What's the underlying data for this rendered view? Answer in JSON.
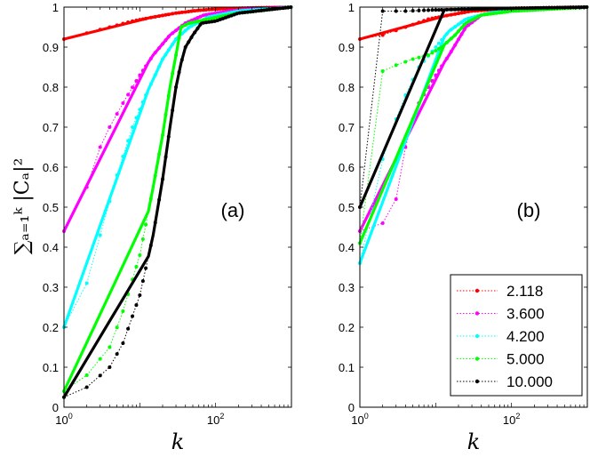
{
  "chart_data": {
    "type": "line",
    "xscale": "log",
    "xlim": [
      1,
      1000
    ],
    "ylim": [
      0,
      1
    ],
    "ylabel": "∑ₐ₌₁ᵏ |Cₐ|²",
    "xlabel": "k",
    "yticks": [
      "0",
      "0.1",
      "0.2",
      "0.3",
      "0.4",
      "0.5",
      "0.6",
      "0.7",
      "0.8",
      "0.9",
      "1"
    ],
    "xticks": [
      {
        "value": 1,
        "base": "10",
        "exp": "0"
      },
      {
        "value": 100,
        "base": "10",
        "exp": "2"
      }
    ],
    "legend": {
      "placement": "bottom-right",
      "entries": [
        {
          "label": "2.118",
          "color": "#ff0000"
        },
        {
          "label": "3.600",
          "color": "#ff00ff"
        },
        {
          "label": "4.200",
          "color": "#00ffff"
        },
        {
          "label": "5.000",
          "color": "#00ff00"
        },
        {
          "label": "10.000",
          "color": "#000000"
        }
      ]
    },
    "panels": [
      {
        "label": "(a)",
        "series": [
          {
            "name": "2.118",
            "color": "#ff0000",
            "start": 0.92,
            "knots": [
              [
                1,
                0.92
              ],
              [
                2,
                0.935
              ],
              [
                4,
                0.95
              ],
              [
                8,
                0.965
              ],
              [
                15,
                0.975
              ],
              [
                30,
                0.985
              ],
              [
                60,
                0.992
              ],
              [
                120,
                0.996
              ],
              [
                300,
                0.998
              ],
              [
                1000,
                1.0
              ]
            ]
          },
          {
            "name": "3.600",
            "color": "#ff00ff",
            "start": 0.44,
            "knots": [
              [
                1,
                0.44
              ],
              [
                2,
                0.55
              ],
              [
                3,
                0.65
              ],
              [
                4,
                0.7
              ],
              [
                6,
                0.76
              ],
              [
                10,
                0.83
              ],
              [
                15,
                0.88
              ],
              [
                25,
                0.93
              ],
              [
                40,
                0.96
              ],
              [
                70,
                0.98
              ],
              [
                150,
                0.99
              ],
              [
                400,
                0.997
              ],
              [
                1000,
                1.0
              ]
            ]
          },
          {
            "name": "4.200",
            "color": "#00ffff",
            "start": 0.2,
            "knots": [
              [
                1,
                0.2
              ],
              [
                2,
                0.31
              ],
              [
                3,
                0.43
              ],
              [
                5,
                0.58
              ],
              [
                8,
                0.7
              ],
              [
                12,
                0.78
              ],
              [
                20,
                0.87
              ],
              [
                30,
                0.92
              ],
              [
                45,
                0.95
              ],
              [
                80,
                0.975
              ],
              [
                200,
                0.99
              ],
              [
                1000,
                1.0
              ]
            ]
          },
          {
            "name": "5.000",
            "color": "#00ff00",
            "start": 0.04,
            "knots": [
              [
                1,
                0.04
              ],
              [
                2,
                0.08
              ],
              [
                4,
                0.15
              ],
              [
                6,
                0.24
              ],
              [
                10,
                0.38
              ],
              [
                15,
                0.55
              ],
              [
                20,
                0.68
              ],
              [
                25,
                0.8
              ],
              [
                30,
                0.88
              ],
              [
                35,
                0.95
              ],
              [
                45,
                0.96
              ],
              [
                80,
                0.97
              ],
              [
                200,
                0.985
              ],
              [
                1000,
                1.0
              ]
            ]
          },
          {
            "name": "10.000",
            "color": "#000000",
            "start": 0.025,
            "knots": [
              [
                1,
                0.025
              ],
              [
                2,
                0.05
              ],
              [
                4,
                0.1
              ],
              [
                6,
                0.16
              ],
              [
                10,
                0.28
              ],
              [
                15,
                0.43
              ],
              [
                20,
                0.57
              ],
              [
                25,
                0.7
              ],
              [
                30,
                0.8
              ],
              [
                35,
                0.86
              ],
              [
                40,
                0.9
              ],
              [
                50,
                0.93
              ],
              [
                65,
                0.96
              ],
              [
                100,
                0.965
              ],
              [
                200,
                0.985
              ],
              [
                1000,
                1.0
              ]
            ]
          }
        ]
      },
      {
        "label": "(b)",
        "series": [
          {
            "name": "2.118",
            "color": "#ff0000",
            "start": 0.92,
            "knots": [
              [
                1,
                0.92
              ],
              [
                2,
                0.93
              ],
              [
                4,
                0.95
              ],
              [
                8,
                0.97
              ],
              [
                15,
                0.98
              ],
              [
                30,
                0.99
              ],
              [
                100,
                0.997
              ],
              [
                1000,
                1.0
              ]
            ]
          },
          {
            "name": "3.600",
            "color": "#ff00ff",
            "start": 0.44,
            "knots": [
              [
                1,
                0.44
              ],
              [
                2,
                0.46
              ],
              [
                3,
                0.52
              ],
              [
                4,
                0.65
              ],
              [
                5,
                0.72
              ],
              [
                6,
                0.76
              ],
              [
                8,
                0.8
              ],
              [
                10,
                0.83
              ],
              [
                15,
                0.88
              ],
              [
                25,
                0.95
              ],
              [
                40,
                0.98
              ],
              [
                100,
                0.995
              ],
              [
                1000,
                1.0
              ]
            ]
          },
          {
            "name": "4.200",
            "color": "#00ffff",
            "start": 0.36,
            "knots": [
              [
                1,
                0.36
              ],
              [
                2,
                0.62
              ],
              [
                3,
                0.72
              ],
              [
                4,
                0.78
              ],
              [
                6,
                0.85
              ],
              [
                10,
                0.9
              ],
              [
                15,
                0.94
              ],
              [
                25,
                0.97
              ],
              [
                50,
                0.985
              ],
              [
                150,
                0.995
              ],
              [
                1000,
                1.0
              ]
            ]
          },
          {
            "name": "5.000",
            "color": "#00ff00",
            "start": 0.41,
            "knots": [
              [
                1,
                0.41
              ],
              [
                2,
                0.84
              ],
              [
                3,
                0.855
              ],
              [
                5,
                0.87
              ],
              [
                8,
                0.88
              ],
              [
                12,
                0.9
              ],
              [
                18,
                0.93
              ],
              [
                25,
                0.96
              ],
              [
                40,
                0.98
              ],
              [
                100,
                0.99
              ],
              [
                1000,
                1.0
              ]
            ]
          },
          {
            "name": "10.000",
            "color": "#000000",
            "start": 0.5,
            "knots": [
              [
                1,
                0.5
              ],
              [
                2,
                0.99
              ],
              [
                4,
                0.99
              ],
              [
                10,
                0.993
              ],
              [
                100,
                0.997
              ],
              [
                1000,
                1.0
              ]
            ]
          }
        ]
      }
    ]
  }
}
